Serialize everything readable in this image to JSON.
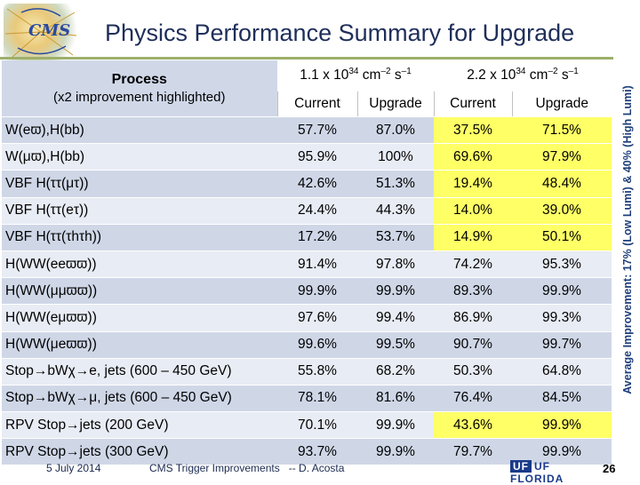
{
  "logo": {
    "text": "CMS"
  },
  "title": "Physics Performance Summary for Upgrade",
  "side_label": "Average Improvement: 17% (Low Lumi) & 40% (High Lumi)",
  "table": {
    "process_label": "Process",
    "process_note": "(x2 improvement highlighted)",
    "lumi_low": {
      "base": "1.1 x 10",
      "exp": "34",
      "unit": " cm",
      "exp2": "–2",
      "unit2": " s",
      "exp3": "–1"
    },
    "lumi_high": {
      "base": "2.2 x 10",
      "exp": "34",
      "unit": " cm",
      "exp2": "–2",
      "unit2": " s",
      "exp3": "–1"
    },
    "sub_headers": [
      "Current",
      "Upgrade",
      "Current",
      "Upgrade"
    ],
    "rows": [
      {
        "name": "W(eϖ),H(bb)",
        "values": [
          "57.7%",
          "87.0%",
          "37.5%",
          "71.5%"
        ],
        "highlight": [
          false,
          false,
          true,
          true
        ]
      },
      {
        "name": "W(μϖ),H(bb)",
        "values": [
          "95.9%",
          "100%",
          "69.6%",
          "97.9%"
        ],
        "highlight": [
          false,
          false,
          true,
          true
        ]
      },
      {
        "name": "VBF H(ττ(μτ))",
        "values": [
          "42.6%",
          "51.3%",
          "19.4%",
          "48.4%"
        ],
        "highlight": [
          false,
          false,
          true,
          true
        ]
      },
      {
        "name": "VBF H(ττ(eτ))",
        "values": [
          "24.4%",
          "44.3%",
          "14.0%",
          "39.0%"
        ],
        "highlight": [
          false,
          false,
          true,
          true
        ]
      },
      {
        "name": "VBF H(ττ(τhτh))",
        "values": [
          "17.2%",
          "53.7%",
          "14.9%",
          "50.1%"
        ],
        "highlight": [
          false,
          false,
          true,
          true
        ]
      },
      {
        "name": "H(WW(eeϖϖ))",
        "values": [
          "91.4%",
          "97.8%",
          "74.2%",
          "95.3%"
        ],
        "highlight": [
          false,
          false,
          false,
          false
        ]
      },
      {
        "name": "H(WW(μμϖϖ))",
        "values": [
          "99.9%",
          "99.9%",
          "89.3%",
          "99.9%"
        ],
        "highlight": [
          false,
          false,
          false,
          false
        ]
      },
      {
        "name": "H(WW(eμϖϖ))",
        "values": [
          "97.6%",
          "99.4%",
          "86.9%",
          "99.3%"
        ],
        "highlight": [
          false,
          false,
          false,
          false
        ]
      },
      {
        "name": "H(WW(μeϖϖ))",
        "values": [
          "99.6%",
          "99.5%",
          "90.7%",
          "99.7%"
        ],
        "highlight": [
          false,
          false,
          false,
          false
        ]
      },
      {
        "name": "Stop→bWχ→e, jets (600 – 450 GeV)",
        "values": [
          "55.8%",
          "68.2%",
          "50.3%",
          "64.8%"
        ],
        "highlight": [
          false,
          false,
          false,
          false
        ]
      },
      {
        "name": "Stop→bWχ→μ, jets (600 – 450 GeV)",
        "values": [
          "78.1%",
          "81.6%",
          "76.4%",
          "84.5%"
        ],
        "highlight": [
          false,
          false,
          false,
          false
        ]
      },
      {
        "name": "RPV Stop→jets (200 GeV)",
        "values": [
          "70.1%",
          "99.9%",
          "43.6%",
          "99.9%"
        ],
        "highlight": [
          false,
          false,
          true,
          true
        ]
      },
      {
        "name": "RPV Stop→jets (300 GeV)",
        "values": [
          "93.7%",
          "99.9%",
          "79.7%",
          "99.9%"
        ],
        "highlight": [
          false,
          false,
          false,
          false
        ]
      }
    ]
  },
  "footer": {
    "date": "5 July 2014",
    "talk": "CMS Trigger Improvements   -- D. Acosta",
    "university": "UF FLORIDA",
    "page": "26"
  },
  "colors": {
    "title": "#1f2f5a",
    "highlight": "#ffff66",
    "row_odd": "#cfd7e7",
    "row_even": "#e8ecf4"
  }
}
